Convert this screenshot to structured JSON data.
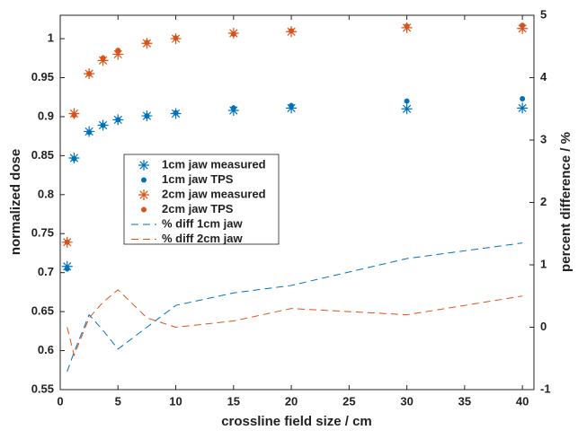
{
  "chart_data": {
    "type": "line",
    "xlabel": "crossline field size / cm",
    "ylabel": "normalized dose",
    "y2label": "percent difference / %",
    "xlim": [
      0,
      41
    ],
    "xticks": [
      0,
      5,
      10,
      15,
      20,
      25,
      30,
      35,
      40
    ],
    "ylim": [
      0.55,
      1.03
    ],
    "yticks": [
      0.55,
      0.6,
      0.65,
      0.7,
      0.75,
      0.8,
      0.85,
      0.9,
      0.95,
      1
    ],
    "y2lim": [
      -1,
      5
    ],
    "y2ticks": [
      -1,
      0,
      1,
      2,
      3,
      4,
      5
    ],
    "x": [
      0.6,
      1.2,
      2.5,
      3.7,
      5,
      7.5,
      10,
      15,
      20,
      30,
      40
    ],
    "series": [
      {
        "name": "1cm jaw measured",
        "color": "#0072bd",
        "marker": "asterisk",
        "values": [
          0.708,
          0.847,
          0.881,
          0.889,
          0.896,
          0.901,
          0.904,
          0.908,
          0.911,
          0.91,
          0.911
        ]
      },
      {
        "name": "1cm jaw TPS",
        "color": "#0072bd",
        "marker": "dot",
        "values": [
          0.705,
          0.846,
          0.88,
          0.889,
          0.896,
          0.901,
          0.905,
          0.911,
          0.914,
          0.92,
          0.923
        ]
      },
      {
        "name": "2cm jaw measured",
        "color": "#d95319",
        "marker": "asterisk",
        "values": [
          0.739,
          0.904,
          0.955,
          0.972,
          0.98,
          0.994,
          1.0,
          1.007,
          1.009,
          1.014,
          1.013
        ]
      },
      {
        "name": "2cm jaw TPS",
        "color": "#d95319",
        "marker": "dot",
        "values": [
          0.739,
          0.902,
          0.955,
          0.975,
          0.985,
          0.995,
          1.001,
          1.006,
          1.01,
          1.016,
          1.017
        ]
      },
      {
        "name": "% diff 1cm jaw",
        "color": "#0072bd",
        "marker": "dashed",
        "axis": "y2",
        "values": [
          -0.71,
          -0.4,
          0.2,
          -0.05,
          -0.35,
          0.0,
          0.35,
          0.55,
          0.67,
          1.1,
          1.35
        ]
      },
      {
        "name": "% diff 2cm jaw",
        "color": "#d95319",
        "marker": "dashed",
        "axis": "y2",
        "values": [
          0.0,
          -0.45,
          0.15,
          0.4,
          0.6,
          0.15,
          0.0,
          0.1,
          0.3,
          0.2,
          0.5
        ]
      }
    ]
  }
}
